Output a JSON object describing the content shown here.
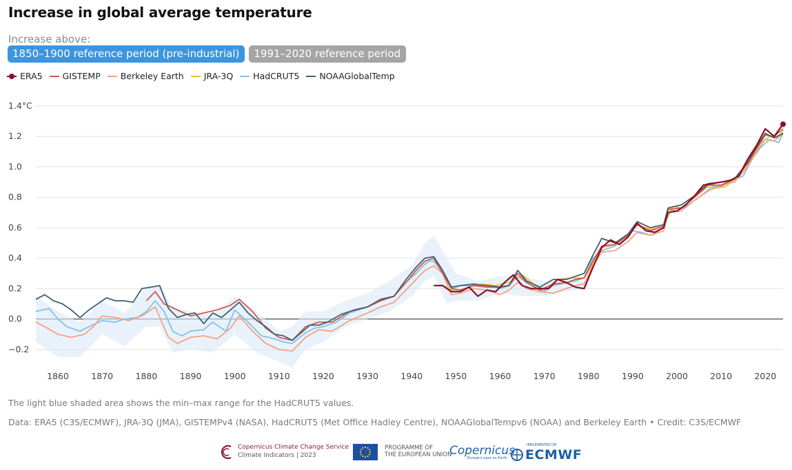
{
  "title": "Increase in global average temperature",
  "subtitle": "Increase above:",
  "tabs": [
    {
      "label": "1850–1900 reference period (pre-industrial)",
      "active": true
    },
    {
      "label": "1991–2020 reference period",
      "active": false
    }
  ],
  "legend": [
    {
      "name": "ERA5",
      "color": "#8b0e2a"
    },
    {
      "name": "GISTEMP",
      "color": "#d0564b"
    },
    {
      "name": "Berkeley Earth",
      "color": "#f4a283"
    },
    {
      "name": "JRA-3Q",
      "color": "#f2c12e"
    },
    {
      "name": "HadCRUT5",
      "color": "#82c0ee"
    },
    {
      "name": "NOAAGlobalTemp",
      "color": "#3f5f6e"
    }
  ],
  "footnote_shading": "The light blue shaded area shows the min–max range for the HadCRUT5 values.",
  "footnote_data": "Data: ERA5 (C3S/ECMWF), JRA-3Q (JMA), GISTEMPv4 (NASA), HadCRUT5 (Met Office Hadley Centre), NOAAGlobalTempv6 (NOAA) and Berkeley Earth • Credit: C3S/ECMWF",
  "logos": {
    "c3s_line1": "Copernicus Climate Change Service",
    "c3s_line2": "Climate Indicators | 2023",
    "eu_line1": "PROGRAMME OF",
    "eu_line2": "THE EUROPEAN UNION",
    "copernicus": "Copernicus",
    "copernicus_sub": "Europe's eyes on Earth",
    "ecmwf_small": "IMPLEMENTED BY",
    "ecmwf": "ECMWF"
  },
  "chart_data": {
    "type": "line",
    "x_range": [
      1855,
      2024
    ],
    "ylim": [
      -0.3,
      1.4
    ],
    "yticks": [
      -0.2,
      0.0,
      0.2,
      0.4,
      0.6,
      0.8,
      1.0,
      1.2,
      1.4
    ],
    "ytick_labels": [
      "−0.2",
      "0.0",
      "0.2",
      "0.4",
      "0.6",
      "0.8",
      "1.0",
      "1.2",
      "1.4°C"
    ],
    "xticks": [
      1860,
      1870,
      1880,
      1890,
      1900,
      1910,
      1920,
      1930,
      1940,
      1950,
      1960,
      1970,
      1980,
      1990,
      2000,
      2010,
      2020
    ],
    "grid": true,
    "hadcrut_range": {
      "x": [
        1855,
        1860,
        1865,
        1870,
        1875,
        1880,
        1883,
        1886,
        1890,
        1895,
        1900,
        1905,
        1910,
        1913,
        1916,
        1920,
        1925,
        1930,
        1935,
        1940,
        1943,
        1945,
        1948,
        1950,
        1955,
        1960,
        1965,
        1970,
        1975,
        1980
      ],
      "upper": [
        0.15,
        0.05,
        -0.02,
        0.12,
        0.04,
        0.2,
        0.22,
        0.08,
        0.05,
        0.03,
        0.15,
        0.05,
        -0.08,
        -0.05,
        0.05,
        0.05,
        0.12,
        0.17,
        0.25,
        0.35,
        0.5,
        0.55,
        0.4,
        0.3,
        0.25,
        0.28,
        0.28,
        0.25,
        0.25,
        0.25
      ],
      "lower": [
        -0.15,
        -0.25,
        -0.25,
        -0.1,
        -0.18,
        -0.05,
        -0.05,
        -0.22,
        -0.2,
        -0.22,
        -0.1,
        -0.22,
        -0.28,
        -0.32,
        -0.2,
        -0.15,
        -0.05,
        0.0,
        0.05,
        0.15,
        0.25,
        0.28,
        0.1,
        0.12,
        0.12,
        0.17,
        0.15,
        0.15,
        0.18,
        0.2
      ]
    },
    "series": [
      {
        "name": "HadCRUT5",
        "color": "#82c0ee",
        "x": [
          1855,
          1858,
          1860,
          1862,
          1865,
          1867,
          1870,
          1873,
          1875,
          1878,
          1880,
          1882,
          1884,
          1886,
          1888,
          1890,
          1893,
          1895,
          1898,
          1900,
          1903,
          1906,
          1909,
          1911,
          1913,
          1916,
          1918,
          1920,
          1923,
          1926,
          1930,
          1933,
          1936,
          1939,
          1941,
          1943,
          1944,
          1945,
          1947,
          1949,
          1951,
          1954,
          1957,
          1960,
          1962,
          1964,
          1966,
          1968,
          1970,
          1972,
          1975,
          1977,
          1979,
          1981,
          1983,
          1986,
          1988,
          1990,
          1992,
          1994,
          1997,
          1998,
          2000,
          2002,
          2005,
          2008,
          2010,
          2012,
          2015,
          2017,
          2019,
          2021,
          2023,
          2024
        ],
        "y": [
          0.05,
          0.07,
          0.0,
          -0.05,
          -0.08,
          -0.05,
          -0.01,
          -0.02,
          0.0,
          0.01,
          0.05,
          0.12,
          0.05,
          -0.08,
          -0.11,
          -0.08,
          -0.07,
          -0.02,
          -0.08,
          0.06,
          -0.02,
          -0.11,
          -0.13,
          -0.15,
          -0.16,
          -0.09,
          -0.06,
          -0.05,
          -0.02,
          0.04,
          0.08,
          0.12,
          0.15,
          0.25,
          0.3,
          0.36,
          0.38,
          0.38,
          0.31,
          0.2,
          0.22,
          0.22,
          0.22,
          0.2,
          0.22,
          0.28,
          0.24,
          0.21,
          0.18,
          0.22,
          0.24,
          0.25,
          0.27,
          0.4,
          0.45,
          0.48,
          0.53,
          0.58,
          0.57,
          0.55,
          0.6,
          0.72,
          0.71,
          0.74,
          0.8,
          0.87,
          0.87,
          0.9,
          0.94,
          1.05,
          1.13,
          1.18,
          1.16,
          1.22
        ]
      },
      {
        "name": "Berkeley Earth",
        "color": "#f4a283",
        "x": [
          1855,
          1857,
          1860,
          1863,
          1866,
          1868,
          1870,
          1873,
          1876,
          1879,
          1882,
          1885,
          1887,
          1890,
          1893,
          1896,
          1899,
          1901,
          1904,
          1907,
          1910,
          1913,
          1916,
          1919,
          1922,
          1926,
          1930,
          1933,
          1936,
          1939,
          1941,
          1943,
          1945,
          1947,
          1949,
          1951,
          1954,
          1957,
          1960,
          1962,
          1964,
          1966,
          1969,
          1972,
          1975,
          1977,
          1979,
          1981,
          1983,
          1986,
          1989,
          1991,
          1994,
          1997,
          1998,
          2001,
          2004,
          2007,
          2010,
          2013,
          2016,
          2018,
          2020,
          2022,
          2024
        ],
        "y": [
          -0.02,
          -0.05,
          -0.1,
          -0.12,
          -0.1,
          -0.05,
          0.02,
          0.01,
          -0.01,
          0.02,
          0.08,
          -0.12,
          -0.16,
          -0.12,
          -0.11,
          -0.13,
          -0.06,
          0.02,
          -0.08,
          -0.16,
          -0.2,
          -0.21,
          -0.12,
          -0.07,
          -0.08,
          -0.01,
          0.04,
          0.08,
          0.11,
          0.2,
          0.26,
          0.32,
          0.35,
          0.3,
          0.16,
          0.17,
          0.2,
          0.19,
          0.16,
          0.19,
          0.24,
          0.2,
          0.18,
          0.17,
          0.2,
          0.22,
          0.23,
          0.35,
          0.44,
          0.45,
          0.51,
          0.57,
          0.55,
          0.58,
          0.7,
          0.71,
          0.78,
          0.84,
          0.88,
          0.9,
          1.0,
          1.1,
          1.18,
          1.17,
          1.22
        ]
      },
      {
        "name": "JRA-3Q",
        "color": "#f2c12e",
        "x": [
          1947,
          1950,
          1953,
          1956,
          1959,
          1962,
          1965,
          1968,
          1970,
          1973,
          1976,
          1979,
          1981,
          1983,
          1986,
          1989,
          1991,
          1994,
          1997,
          1999,
          2001,
          2004,
          2007,
          2009,
          2011,
          2014,
          2017,
          2019,
          2021,
          2023,
          2024
        ],
        "y": [
          0.22,
          0.18,
          0.21,
          0.23,
          0.22,
          0.24,
          0.29,
          0.22,
          0.19,
          0.26,
          0.27,
          0.27,
          0.36,
          0.47,
          0.49,
          0.55,
          0.62,
          0.59,
          0.61,
          0.74,
          0.73,
          0.8,
          0.87,
          0.86,
          0.87,
          0.94,
          1.06,
          1.16,
          1.2,
          1.19,
          1.24
        ]
      },
      {
        "name": "GISTEMP",
        "color": "#d0564b",
        "x": [
          1880,
          1882,
          1884,
          1887,
          1890,
          1893,
          1896,
          1899,
          1901,
          1904,
          1907,
          1910,
          1913,
          1916,
          1919,
          1922,
          1926,
          1930,
          1933,
          1936,
          1939,
          1941,
          1943,
          1945,
          1947,
          1949,
          1951,
          1954,
          1957,
          1960,
          1962,
          1964,
          1966,
          1969,
          1972,
          1975,
          1977,
          1979,
          1981,
          1983,
          1986,
          1989,
          1991,
          1994,
          1997,
          1998,
          2001,
          2004,
          2007,
          2010,
          2013,
          2016,
          2018,
          2020,
          2022,
          2024
        ],
        "y": [
          0.12,
          0.18,
          0.1,
          0.06,
          0.02,
          0.04,
          0.06,
          0.09,
          0.13,
          0.05,
          -0.06,
          -0.12,
          -0.14,
          -0.05,
          -0.02,
          -0.02,
          0.05,
          0.08,
          0.12,
          0.15,
          0.25,
          0.32,
          0.38,
          0.4,
          0.3,
          0.2,
          0.19,
          0.22,
          0.21,
          0.21,
          0.22,
          0.3,
          0.24,
          0.19,
          0.23,
          0.24,
          0.26,
          0.27,
          0.38,
          0.48,
          0.49,
          0.55,
          0.62,
          0.58,
          0.61,
          0.72,
          0.73,
          0.8,
          0.88,
          0.88,
          0.92,
          1.02,
          1.12,
          1.21,
          1.2,
          1.25
        ]
      },
      {
        "name": "NOAAGlobalTemp",
        "color": "#3f5f6e",
        "x": [
          1855,
          1857,
          1859,
          1861,
          1863,
          1865,
          1867,
          1869,
          1871,
          1873,
          1875,
          1877,
          1879,
          1881,
          1883,
          1885,
          1887,
          1889,
          1891,
          1893,
          1895,
          1897,
          1899,
          1901,
          1903,
          1905,
          1907,
          1909,
          1911,
          1913,
          1915,
          1917,
          1919,
          1921,
          1924,
          1927,
          1930,
          1933,
          1936,
          1939,
          1941,
          1943,
          1945,
          1947,
          1949,
          1951,
          1954,
          1957,
          1960,
          1962,
          1964,
          1966,
          1969,
          1972,
          1975,
          1977,
          1979,
          1981,
          1983,
          1986,
          1989,
          1991,
          1994,
          1997,
          1998,
          2001,
          2004,
          2007,
          2010,
          2013,
          2016,
          2018,
          2020,
          2022,
          2024
        ],
        "y": [
          0.13,
          0.16,
          0.12,
          0.1,
          0.06,
          0.01,
          0.06,
          0.1,
          0.14,
          0.12,
          0.12,
          0.11,
          0.2,
          0.21,
          0.22,
          0.07,
          0.01,
          0.03,
          0.04,
          -0.03,
          0.04,
          0.01,
          0.06,
          0.11,
          0.04,
          -0.01,
          -0.05,
          -0.1,
          -0.11,
          -0.14,
          -0.09,
          -0.04,
          -0.04,
          -0.02,
          0.03,
          0.06,
          0.08,
          0.13,
          0.15,
          0.27,
          0.34,
          0.4,
          0.41,
          0.32,
          0.21,
          0.22,
          0.23,
          0.22,
          0.21,
          0.22,
          0.32,
          0.25,
          0.21,
          0.26,
          0.26,
          0.28,
          0.3,
          0.42,
          0.53,
          0.5,
          0.56,
          0.64,
          0.6,
          0.62,
          0.73,
          0.75,
          0.81,
          0.89,
          0.9,
          0.92,
          1.03,
          1.13,
          1.22,
          1.19,
          1.22
        ]
      },
      {
        "name": "ERA5",
        "color": "#8b0e2a",
        "marker_last": true,
        "x": [
          1945,
          1947,
          1949,
          1951,
          1953,
          1955,
          1957,
          1959,
          1961,
          1963,
          1965,
          1967,
          1969,
          1971,
          1973,
          1975,
          1977,
          1979,
          1981,
          1983,
          1985,
          1987,
          1989,
          1991,
          1993,
          1995,
          1997,
          1998,
          2000,
          2002,
          2004,
          2006,
          2008,
          2010,
          2012,
          2014,
          2016,
          2018,
          2020,
          2022,
          2024
        ],
        "y": [
          0.22,
          0.22,
          0.18,
          0.18,
          0.21,
          0.15,
          0.19,
          0.18,
          0.24,
          0.29,
          0.22,
          0.2,
          0.2,
          0.2,
          0.26,
          0.24,
          0.21,
          0.2,
          0.34,
          0.47,
          0.52,
          0.49,
          0.54,
          0.63,
          0.58,
          0.57,
          0.6,
          0.7,
          0.71,
          0.75,
          0.81,
          0.88,
          0.89,
          0.9,
          0.91,
          0.94,
          1.05,
          1.14,
          1.25,
          1.2,
          1.28
        ]
      }
    ]
  }
}
